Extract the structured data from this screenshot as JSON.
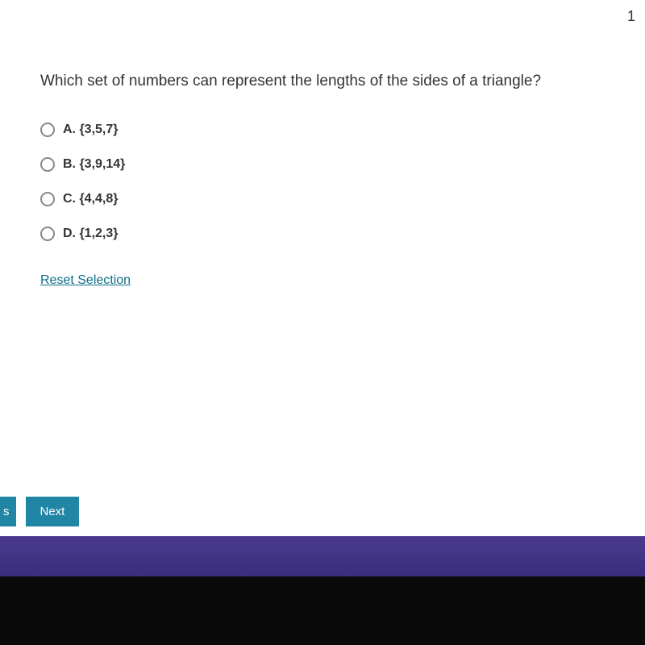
{
  "page_number": "1",
  "question": {
    "text": "Which set of numbers can represent the lengths of the sides of a triangle?",
    "options": [
      {
        "label": "A. {3,5,7}",
        "selected": false
      },
      {
        "label": "B. {3,9,14}",
        "selected": false
      },
      {
        "label": "C. {4,4,8}",
        "selected": false
      },
      {
        "label": "D. {1,2,3}",
        "selected": false
      }
    ]
  },
  "reset_label": "Reset Selection",
  "buttons": {
    "prev": "s",
    "next": "Next"
  },
  "colors": {
    "background": "#ffffff",
    "text": "#333333",
    "link": "#0a6e8a",
    "button_bg": "#2185a6",
    "button_text": "#ffffff",
    "radio_border": "#888888",
    "band_purple": "#3a2d7a",
    "band_black": "#0a0a0a"
  }
}
